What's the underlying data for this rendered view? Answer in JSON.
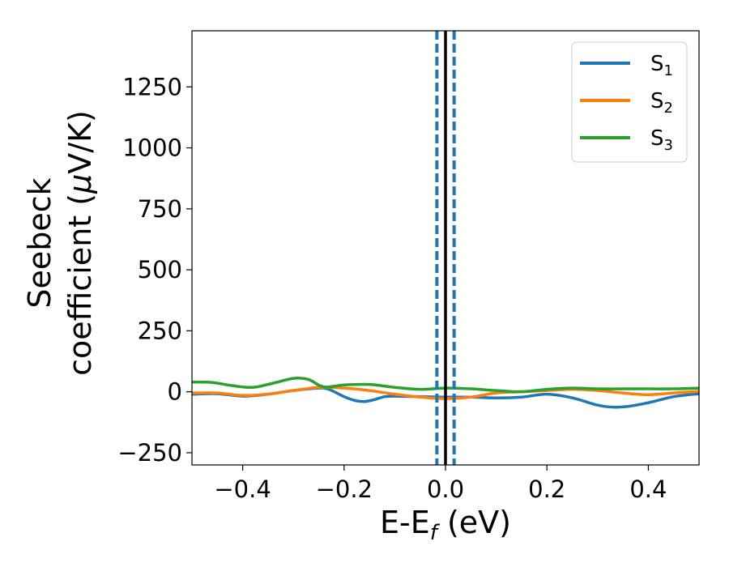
{
  "chart_data": {
    "type": "line",
    "xlabel": "E-E",
    "xlabel_sub": "f",
    "xlabel_unit": " (eV)",
    "ylabel_line1": "Seebeck",
    "ylabel_line2": "coefficient  (",
    "ylabel_mu": "μ",
    "ylabel_unit": "V/K)",
    "xlim": [
      -0.5,
      0.5
    ],
    "ylim": [
      -300,
      1480
    ],
    "xticks": [
      -0.4,
      -0.2,
      0.0,
      0.2,
      0.4
    ],
    "xtick_labels": [
      "−0.4",
      "−0.2",
      "0.0",
      "0.2",
      "0.4"
    ],
    "yticks": [
      -250,
      0,
      250,
      500,
      750,
      1000,
      1250
    ],
    "ytick_labels": [
      "−250",
      "0",
      "250",
      "500",
      "750",
      "1000",
      "1250"
    ],
    "grid": false,
    "legend_position": "top-right",
    "vlines": [
      {
        "x": 0.0,
        "color": "#000000",
        "style": "solid"
      },
      {
        "x": -0.017,
        "color": "#1f77b4",
        "style": "dashed"
      },
      {
        "x": 0.017,
        "color": "#1f77b4",
        "style": "dashed"
      }
    ],
    "series": [
      {
        "name": "S",
        "name_sub": "1",
        "color": "#1f77b4",
        "x": [
          -0.5,
          -0.45,
          -0.4,
          -0.35,
          -0.3,
          -0.25,
          -0.23,
          -0.2,
          -0.18,
          -0.16,
          -0.14,
          -0.12,
          -0.1,
          -0.05,
          0.0,
          0.05,
          0.1,
          0.15,
          0.2,
          0.25,
          0.3,
          0.33,
          0.36,
          0.4,
          0.45,
          0.5
        ],
        "y": [
          -10,
          -8,
          -18,
          -10,
          5,
          15,
          10,
          -20,
          -35,
          -40,
          -32,
          -20,
          -18,
          -20,
          -22,
          -22,
          -25,
          -22,
          -10,
          -25,
          -55,
          -63,
          -60,
          -45,
          -20,
          -8
        ]
      },
      {
        "name": "S",
        "name_sub": "2",
        "color": "#ff7f0e",
        "x": [
          -0.5,
          -0.45,
          -0.4,
          -0.35,
          -0.3,
          -0.25,
          -0.2,
          -0.15,
          -0.1,
          -0.05,
          0.0,
          0.05,
          0.1,
          0.15,
          0.2,
          0.25,
          0.3,
          0.35,
          0.4,
          0.45,
          0.5
        ],
        "y": [
          -5,
          -5,
          -15,
          -10,
          5,
          18,
          15,
          5,
          -10,
          -22,
          -28,
          -22,
          -5,
          0,
          5,
          10,
          5,
          -5,
          -12,
          -5,
          2
        ]
      },
      {
        "name": "S",
        "name_sub": "3",
        "color": "#2ca02c",
        "x": [
          -0.5,
          -0.46,
          -0.42,
          -0.38,
          -0.34,
          -0.3,
          -0.27,
          -0.24,
          -0.2,
          -0.15,
          -0.1,
          -0.05,
          0.0,
          0.05,
          0.1,
          0.15,
          0.2,
          0.25,
          0.3,
          0.35,
          0.4,
          0.45,
          0.5
        ],
        "y": [
          40,
          38,
          25,
          18,
          35,
          55,
          50,
          20,
          28,
          30,
          18,
          10,
          15,
          12,
          5,
          0,
          10,
          15,
          12,
          12,
          12,
          12,
          15
        ]
      }
    ]
  }
}
